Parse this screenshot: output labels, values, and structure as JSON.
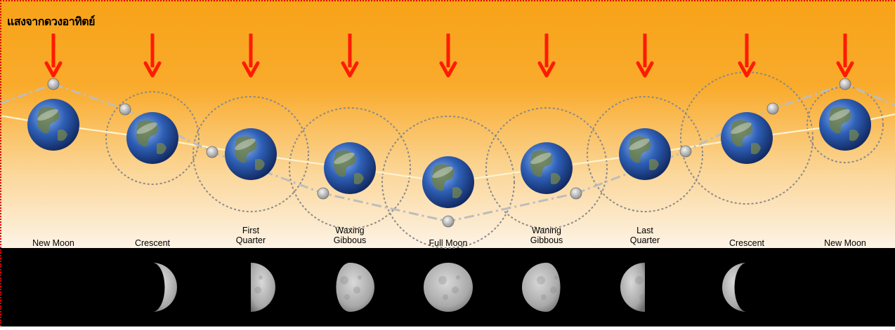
{
  "sun_label": "แสงจากดวงอาทิตย์",
  "phases": [
    {
      "line1": "New Moon",
      "line2": "",
      "illumination": 0.0,
      "lit_side": "right"
    },
    {
      "line1": "Crescent",
      "line2": "",
      "illumination": 0.25,
      "lit_side": "right"
    },
    {
      "line1": "First",
      "line2": "Quarter",
      "illumination": 0.5,
      "lit_side": "right"
    },
    {
      "line1": "Waxing",
      "line2": "Gibbous",
      "illumination": 0.78,
      "lit_side": "right"
    },
    {
      "line1": "Full Moon",
      "line2": "",
      "illumination": 1.0,
      "lit_side": "right"
    },
    {
      "line1": "Waning",
      "line2": "Gibbous",
      "illumination": 0.78,
      "lit_side": "left"
    },
    {
      "line1": "Last",
      "line2": "Quarter",
      "illumination": 0.5,
      "lit_side": "left"
    },
    {
      "line1": "Crescent",
      "line2": "",
      "illumination": 0.25,
      "lit_side": "left"
    },
    {
      "line1": "New Moon",
      "line2": "",
      "illumination": 0.0,
      "lit_side": "left"
    }
  ],
  "colors": {
    "sky_top": "#f7a318",
    "sky_bottom": "#fdf3e6",
    "arrow": "#ff1a00",
    "strip": "#000000",
    "frame": "#e00000"
  },
  "icons": {
    "sun_arrow": "down-arrow-icon",
    "earth": "earth-globe-icon",
    "moon": "moon-icon"
  }
}
